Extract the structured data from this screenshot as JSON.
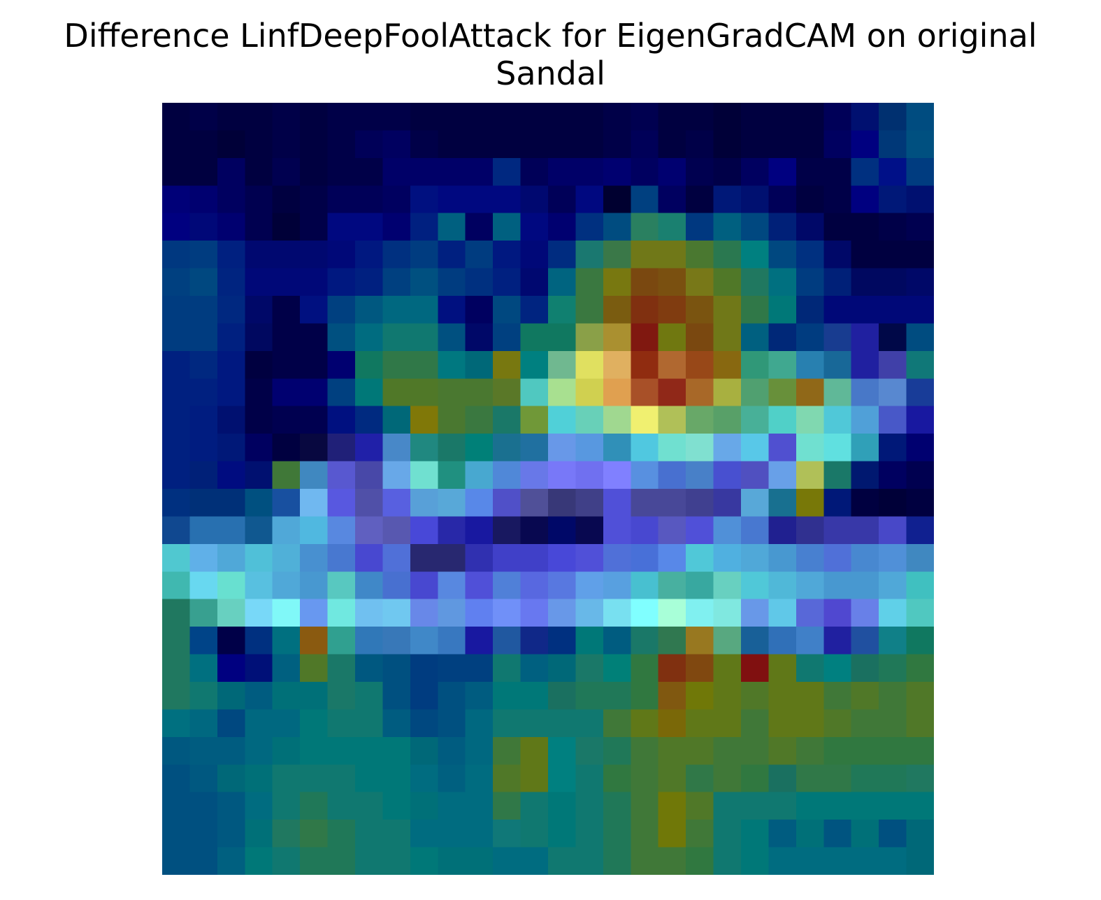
{
  "title": {
    "line1": "Difference LinfDeepFoolAttack for EigenGradCAM on original",
    "line2": "Sandal"
  },
  "chart_data": {
    "type": "heatmap",
    "title": "Difference LinfDeepFoolAttack for EigenGradCAM on original Sandal",
    "xlabel": "",
    "ylabel": "",
    "axes_visible": false,
    "grid": false,
    "legend": "none",
    "rows": 28,
    "cols": 28,
    "colors": [
      [
        "#000040",
        "#000048",
        "#000040",
        "#000040",
        "#000048",
        "#000040",
        "#000048",
        "#000048",
        "#000048",
        "#000040",
        "#000040",
        "#000040",
        "#000040",
        "#000040",
        "#000040",
        "#000040",
        "#000048",
        "#000050",
        "#000040",
        "#000040",
        "#000038",
        "#000040",
        "#000040",
        "#000040",
        "#000058",
        "#001070",
        "#003070",
        "#004c80"
      ],
      [
        "#000040",
        "#000040",
        "#000038",
        "#000040",
        "#000048",
        "#000040",
        "#000048",
        "#000058",
        "#000060",
        "#000048",
        "#000040",
        "#000040",
        "#000040",
        "#000040",
        "#000040",
        "#000040",
        "#000048",
        "#000058",
        "#000040",
        "#000048",
        "#000038",
        "#000040",
        "#000040",
        "#000040",
        "#000060",
        "#000080",
        "#003878",
        "#005080"
      ],
      [
        "#000040",
        "#000040",
        "#000060",
        "#000040",
        "#000050",
        "#000040",
        "#000048",
        "#000048",
        "#000068",
        "#000068",
        "#000068",
        "#000068",
        "#002880",
        "#000058",
        "#000068",
        "#000068",
        "#000070",
        "#000060",
        "#000070",
        "#000050",
        "#000048",
        "#000060",
        "#000080",
        "#000048",
        "#000048",
        "#003080",
        "#001088",
        "#003c80"
      ],
      [
        "#000078",
        "#000070",
        "#000060",
        "#000050",
        "#000040",
        "#000048",
        "#000058",
        "#000058",
        "#000060",
        "#001080",
        "#000880",
        "#000880",
        "#000880",
        "#000870",
        "#000058",
        "#000880",
        "#000030",
        "#004080",
        "#000060",
        "#000040",
        "#001878",
        "#001070",
        "#000058",
        "#000040",
        "#000048",
        "#000080",
        "#001878",
        "#001070"
      ],
      [
        "#000080",
        "#000878",
        "#000070",
        "#000050",
        "#000038",
        "#000048",
        "#000880",
        "#000880",
        "#000070",
        "#002080",
        "#006080",
        "#000060",
        "#006080",
        "#000880",
        "#000070",
        "#003080",
        "#004c80",
        "#2a8060",
        "#1a8070",
        "#003880",
        "#006080",
        "#004880",
        "#002078",
        "#000868",
        "#000040",
        "#000040",
        "#000048",
        "#000050"
      ],
      [
        "#003880",
        "#003c80",
        "#002080",
        "#000870",
        "#000870",
        "#000870",
        "#000878",
        "#001880",
        "#003080",
        "#003c80",
        "#002080",
        "#003c80",
        "#001880",
        "#000878",
        "#002c80",
        "#1a7870",
        "#3a7848",
        "#707818",
        "#707818",
        "#4a7830",
        "#2a7850",
        "#008080",
        "#004880",
        "#003080",
        "#000868",
        "#000040",
        "#000040",
        "#000040"
      ],
      [
        "#004080",
        "#004880",
        "#002480",
        "#000878",
        "#000878",
        "#000878",
        "#001880",
        "#002080",
        "#004080",
        "#005080",
        "#003c80",
        "#003080",
        "#002080",
        "#000870",
        "#006480",
        "#3a7840",
        "#787810",
        "#7a4810",
        "#7a5010",
        "#787818",
        "#507828",
        "#207860",
        "#007080",
        "#003c80",
        "#002078",
        "#000860",
        "#000860",
        "#000868"
      ],
      [
        "#003c80",
        "#003c80",
        "#002880",
        "#000868",
        "#000048",
        "#001080",
        "#004080",
        "#005880",
        "#006880",
        "#006880",
        "#001080",
        "#000060",
        "#004880",
        "#002480",
        "#108070",
        "#3a7840",
        "#7a5c10",
        "#803010",
        "#803c10",
        "#7a5410",
        "#707818",
        "#307848",
        "#007878",
        "#002878",
        "#000878",
        "#000878",
        "#000878",
        "#000878"
      ],
      [
        "#003c80",
        "#003c80",
        "#002080",
        "#000860",
        "#000048",
        "#000048",
        "#005080",
        "#006c80",
        "#107870",
        "#107870",
        "#005080",
        "#000868",
        "#004080",
        "#107860",
        "#107860",
        "#8aa048",
        "#aa9030",
        "#801810",
        "#707810",
        "#7a4810",
        "#707818",
        "#006080",
        "#002878",
        "#003c80",
        "#183c90",
        "#2020a0",
        "#000848",
        "#004c80"
      ],
      [
        "#002080",
        "#002880",
        "#001880",
        "#000040",
        "#000048",
        "#000048",
        "#000070",
        "#107860",
        "#307848",
        "#307848",
        "#007880",
        "#006878",
        "#787810",
        "#008080",
        "#70b890",
        "#e0e060",
        "#e0b060",
        "#902c10",
        "#b06830",
        "#984818",
        "#886810",
        "#309878",
        "#40a890",
        "#2880b0",
        "#186898",
        "#2020a0",
        "#4040a8",
        "#107878"
      ],
      [
        "#002080",
        "#002080",
        "#001880",
        "#000048",
        "#000070",
        "#000070",
        "#004080",
        "#007878",
        "#507828",
        "#507828",
        "#4a7830",
        "#4a7830",
        "#5a7828",
        "#50c8c0",
        "#a8e090",
        "#d0d050",
        "#e0a050",
        "#a85028",
        "#902818",
        "#a86828",
        "#a8b040",
        "#50a070",
        "#68903a",
        "#906818",
        "#60b898",
        "#4878c8",
        "#5888d0",
        "#183c98"
      ],
      [
        "#002080",
        "#001c80",
        "#001070",
        "#000048",
        "#000050",
        "#000050",
        "#001080",
        "#002a80",
        "#006878",
        "#807808",
        "#4a7830",
        "#3a7840",
        "#1a7868",
        "#709838",
        "#50d0d8",
        "#68d0b8",
        "#a0d890",
        "#f0f070",
        "#b0c058",
        "#68a868",
        "#58a068",
        "#48b098",
        "#50d0c8",
        "#80d8b0",
        "#50c8d8",
        "#50a0d8",
        "#4858c8",
        "#1818a0"
      ],
      [
        "#002080",
        "#001c80",
        "#001878",
        "#000060",
        "#000040",
        "#080840",
        "#202078",
        "#2020a8",
        "#4888c8",
        "#208880",
        "#1a7868",
        "#008078",
        "#1a7090",
        "#2070a0",
        "#6898e8",
        "#5898e0",
        "#3090b8",
        "#50c8e0",
        "#70e0d0",
        "#80e0d0",
        "#68a8e8",
        "#58c8e8",
        "#5050d0",
        "#70e0d0",
        "#60e0e0",
        "#30a0b8",
        "#001878",
        "#000070"
      ],
      [
        "#002080",
        "#002078",
        "#000c80",
        "#001070",
        "#407838",
        "#4088c0",
        "#5858d0",
        "#4848a8",
        "#68a8e8",
        "#70e0d0",
        "#209080",
        "#48a8d0",
        "#5088d8",
        "#6878e8",
        "#7878f8",
        "#7070f0",
        "#8080ff",
        "#5890e0",
        "#4870d0",
        "#4880c8",
        "#4850d0",
        "#5050c0",
        "#68a0e8",
        "#b0c058",
        "#1a7868",
        "#001870",
        "#000060",
        "#000050"
      ],
      [
        "#003080",
        "#003078",
        "#003078",
        "#005080",
        "#1850a0",
        "#70b8f0",
        "#5858e0",
        "#5050a8",
        "#5860e0",
        "#58a0d8",
        "#58a8d8",
        "#5888e8",
        "#5050c8",
        "#505098",
        "#383878",
        "#404088",
        "#5050d8",
        "#484898",
        "#484898",
        "#404090",
        "#3838a0",
        "#58a8d8",
        "#187090",
        "#787808",
        "#001878",
        "#000040",
        "#000038",
        "#000040"
      ],
      [
        "#104890",
        "#2870b0",
        "#2870b0",
        "#105890",
        "#50a8d8",
        "#50b8e0",
        "#5888e0",
        "#6060c0",
        "#5858b0",
        "#4848d8",
        "#2828a8",
        "#1818a0",
        "#181860",
        "#080850",
        "#000868",
        "#080850",
        "#5050d8",
        "#4848d0",
        "#5858c0",
        "#5050d8",
        "#5090d8",
        "#4878d0",
        "#202090",
        "#303090",
        "#3838a8",
        "#3838a8",
        "#4848c8",
        "#102090"
      ],
      [
        "#50c8d0",
        "#60b0e8",
        "#50a8d8",
        "#50c0d8",
        "#50b0d8",
        "#4890d0",
        "#4878d0",
        "#4848d0",
        "#5070d8",
        "#282870",
        "#282870",
        "#3030b0",
        "#4040c8",
        "#4040c8",
        "#4848d8",
        "#5050d8",
        "#5070d8",
        "#4870d8",
        "#5888e8",
        "#50c8d8",
        "#50b0e0",
        "#50a8d8",
        "#4898d0",
        "#4880d0",
        "#5070d8",
        "#4888d0",
        "#5090d8",
        "#4088c0"
      ],
      [
        "#40b8b0",
        "#68d8f0",
        "#68e0d0",
        "#58c0e0",
        "#50a8d8",
        "#4898d0",
        "#58c8c0",
        "#4088c8",
        "#4870d0",
        "#4848d0",
        "#5888e0",
        "#5050d8",
        "#5080d8",
        "#5868e0",
        "#5878e0",
        "#60a0e8",
        "#58a0e0",
        "#48c0d0",
        "#48b0a0",
        "#38a8a0",
        "#68d0c0",
        "#50c8d8",
        "#50b8d8",
        "#50a8d8",
        "#4898d0",
        "#4898d0",
        "#50a8d8",
        "#40c0c0"
      ],
      [
        "#207860",
        "#38a090",
        "#68d0c0",
        "#78d8f8",
        "#80f8f8",
        "#6898f0",
        "#70e8e0",
        "#70c0f0",
        "#70c8f0",
        "#6888e8",
        "#6098e0",
        "#6080f0",
        "#7090f8",
        "#6878f0",
        "#6898e8",
        "#68b8e8",
        "#78e0f0",
        "#80ffff",
        "#a8ffd8",
        "#80f0f0",
        "#80e8e0",
        "#6898e8",
        "#60c8e8",
        "#5868d8",
        "#5048d0",
        "#6880e8",
        "#60d0e8",
        "#50c8c0"
      ],
      [
        "#207860",
        "#004488",
        "#000048",
        "#003080",
        "#007080",
        "#8a5a10",
        "#30a090",
        "#3078b8",
        "#3878b8",
        "#4088c8",
        "#3878c0",
        "#1818a0",
        "#2058a0",
        "#102888",
        "#003080",
        "#007878",
        "#005c80",
        "#1a7868",
        "#307850",
        "#987820",
        "#58a880",
        "#186098",
        "#3070b8",
        "#4080c8",
        "#2020a0",
        "#2050a0",
        "#108088",
        "#107860"
      ],
      [
        "#207860",
        "#007080",
        "#000080",
        "#001078",
        "#006080",
        "#507828",
        "#1a7868",
        "#005880",
        "#005080",
        "#003c80",
        "#004080",
        "#004080",
        "#107870",
        "#006080",
        "#006878",
        "#1a7868",
        "#008078",
        "#307840",
        "#803010",
        "#804810",
        "#607818",
        "#801010",
        "#607818",
        "#107870",
        "#008080",
        "#1a7060",
        "#207858",
        "#307840"
      ],
      [
        "#207860",
        "#107870",
        "#006878",
        "#005c80",
        "#007078",
        "#007078",
        "#1a7868",
        "#107870",
        "#005080",
        "#003c80",
        "#005080",
        "#005c80",
        "#007878",
        "#007878",
        "#1a7060",
        "#207858",
        "#207858",
        "#307840",
        "#805810",
        "#707808",
        "#607818",
        "#507828",
        "#607818",
        "#607818",
        "#407838",
        "#507828",
        "#407838",
        "#507828"
      ],
      [
        "#007080",
        "#006880",
        "#004880",
        "#006880",
        "#006880",
        "#007878",
        "#107870",
        "#107870",
        "#005c80",
        "#004880",
        "#005080",
        "#006880",
        "#107870",
        "#107870",
        "#107870",
        "#107870",
        "#407838",
        "#607818",
        "#7a6808",
        "#607818",
        "#607818",
        "#407838",
        "#607818",
        "#607818",
        "#507828",
        "#407838",
        "#407838",
        "#507828"
      ],
      [
        "#005880",
        "#005c80",
        "#005c80",
        "#006880",
        "#007078",
        "#007878",
        "#007878",
        "#007878",
        "#007878",
        "#006878",
        "#005c80",
        "#006880",
        "#407838",
        "#607818",
        "#008080",
        "#1a7868",
        "#207858",
        "#407838",
        "#507828",
        "#507828",
        "#407838",
        "#407838",
        "#507828",
        "#407838",
        "#307840",
        "#307840",
        "#307840",
        "#307840"
      ],
      [
        "#005080",
        "#005880",
        "#006878",
        "#007078",
        "#107870",
        "#107870",
        "#107870",
        "#007878",
        "#007878",
        "#006c80",
        "#006080",
        "#006c80",
        "#507828",
        "#607818",
        "#008080",
        "#107870",
        "#307840",
        "#407838",
        "#507828",
        "#307848",
        "#407838",
        "#307840",
        "#1a7060",
        "#307848",
        "#307848",
        "#207858",
        "#207858",
        "#207860"
      ],
      [
        "#005080",
        "#005080",
        "#005880",
        "#006c80",
        "#107870",
        "#207858",
        "#107870",
        "#107870",
        "#007878",
        "#007078",
        "#006c80",
        "#006c80",
        "#307848",
        "#107870",
        "#007878",
        "#107870",
        "#207858",
        "#407838",
        "#707808",
        "#507828",
        "#107870",
        "#107870",
        "#107870",
        "#007878",
        "#007878",
        "#007878",
        "#007878",
        "#007878"
      ],
      [
        "#005080",
        "#005080",
        "#005880",
        "#007078",
        "#207860",
        "#307848",
        "#207858",
        "#107870",
        "#107870",
        "#006c80",
        "#006c80",
        "#006c80",
        "#107878",
        "#107870",
        "#007878",
        "#107870",
        "#207858",
        "#407838",
        "#707808",
        "#407838",
        "#107870",
        "#007878",
        "#005c80",
        "#007078",
        "#005480",
        "#007078",
        "#005080",
        "#006878"
      ],
      [
        "#005080",
        "#005080",
        "#006080",
        "#007878",
        "#107870",
        "#207858",
        "#207858",
        "#107870",
        "#107870",
        "#007878",
        "#007078",
        "#007078",
        "#006c80",
        "#006c80",
        "#107870",
        "#107870",
        "#207858",
        "#407838",
        "#407838",
        "#307840",
        "#107870",
        "#007878",
        "#006c80",
        "#006c80",
        "#006c80",
        "#006c80",
        "#006c80",
        "#006878"
      ]
    ]
  }
}
